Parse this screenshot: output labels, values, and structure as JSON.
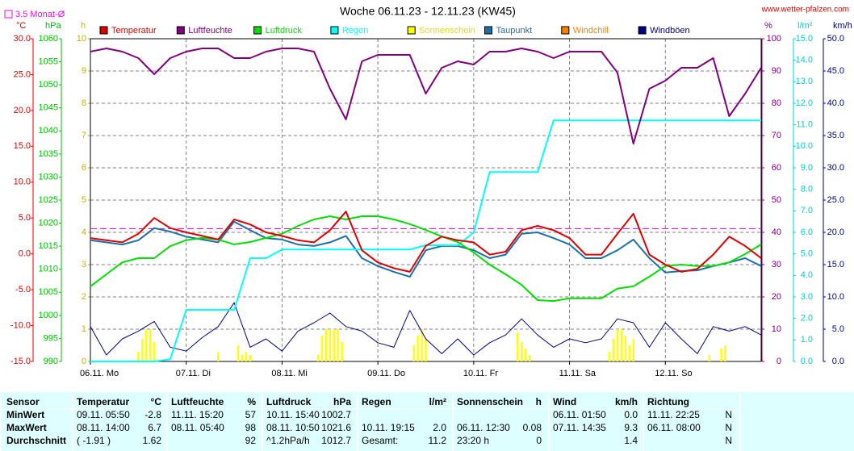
{
  "chart_data": {
    "type": "line",
    "title": "Woche 06.11.23 - 12.11.23 (KW45)",
    "source": "www.wetter-pfalzen.com",
    "reference_line": {
      "value": 3.5,
      "label": "3.5 Monat-Ø",
      "color": "#ff00ff",
      "axis": 0
    },
    "xlim": [
      0,
      168
    ],
    "xticks": [
      {
        "value": 0,
        "label": "06.11. Mo"
      },
      {
        "value": 24,
        "label": "07.11. Di"
      },
      {
        "value": 48,
        "label": "08.11. Mi"
      },
      {
        "value": 72,
        "label": "09.11. Do"
      },
      {
        "value": 96,
        "label": "10.11. Fr"
      },
      {
        "value": 120,
        "label": "11.11. Sa"
      },
      {
        "value": 144,
        "label": "12.11. So"
      }
    ],
    "grid": true,
    "axes": [
      {
        "unit": "°C",
        "side": "left",
        "color": "#e00000",
        "ylim": [
          -15,
          30
        ],
        "yticks": [
          {
            "value": 30,
            "label": "30.0"
          },
          {
            "value": 25,
            "label": "25.0"
          },
          {
            "value": 20,
            "label": "20.0"
          },
          {
            "value": 15,
            "label": "15.0"
          },
          {
            "value": 10,
            "label": "10.0"
          },
          {
            "value": 5,
            "label": "5.0"
          },
          {
            "value": 0,
            "label": "0.0"
          },
          {
            "value": -5,
            "label": "-5.0"
          },
          {
            "value": -10,
            "label": "-10.0"
          },
          {
            "value": -15,
            "label": "-15.0"
          }
        ]
      },
      {
        "unit": "hPa",
        "side": "left",
        "color": "#00c000",
        "ylim": [
          990,
          1060
        ],
        "yticks": [
          1060,
          1055,
          1050,
          1045,
          1040,
          1035,
          1030,
          1025,
          1020,
          1015,
          1010,
          1005,
          1000,
          995,
          990
        ]
      },
      {
        "unit": "h",
        "side": "left",
        "color": "#b8b800",
        "ylim": [
          0,
          10
        ],
        "yticks": [
          10,
          9,
          8,
          7,
          6,
          5,
          4,
          3,
          2,
          1,
          0
        ]
      },
      {
        "unit": "%",
        "side": "right",
        "color": "#800080",
        "ylim": [
          0,
          100
        ],
        "yticks": [
          100,
          90,
          80,
          70,
          60,
          50,
          40,
          30,
          20,
          10,
          0
        ]
      },
      {
        "unit": "l/m²",
        "side": "right",
        "color": "#00d0d0",
        "ylim": [
          0,
          15
        ],
        "yticks": [
          {
            "value": 15,
            "label": "15.0"
          },
          {
            "value": 14,
            "label": "14.0"
          },
          {
            "value": 13,
            "label": "13.0"
          },
          {
            "value": 12,
            "label": "12.0"
          },
          {
            "value": 11,
            "label": "11.0"
          },
          {
            "value": 10,
            "label": "10.0"
          },
          {
            "value": 9,
            "label": "9.0"
          },
          {
            "value": 8,
            "label": "8.0"
          },
          {
            "value": 7,
            "label": "7.0"
          },
          {
            "value": 6,
            "label": "6.0"
          },
          {
            "value": 5,
            "label": "5.0"
          },
          {
            "value": 4,
            "label": "4.0"
          },
          {
            "value": 3,
            "label": "3.0"
          },
          {
            "value": 2,
            "label": "2.0"
          },
          {
            "value": 1,
            "label": "1.0"
          },
          {
            "value": 0,
            "label": "0.0"
          }
        ]
      },
      {
        "unit": "km/h",
        "side": "right",
        "color": "#000080",
        "ylim": [
          0,
          50
        ],
        "yticks": [
          {
            "value": 50,
            "label": "50.0"
          },
          {
            "value": 45,
            "label": "45.0"
          },
          {
            "value": 40,
            "label": "40.0"
          },
          {
            "value": 35,
            "label": "35.0"
          },
          {
            "value": 30,
            "label": "30.0"
          },
          {
            "value": 25,
            "label": "25.0"
          },
          {
            "value": 20,
            "label": "20.0"
          },
          {
            "value": 15,
            "label": "15.0"
          },
          {
            "value": 10,
            "label": "10.0"
          },
          {
            "value": 5,
            "label": "5.0"
          },
          {
            "value": 0,
            "label": "0.0"
          }
        ]
      }
    ],
    "x": [
      0,
      4,
      8,
      12,
      16,
      20,
      24,
      28,
      32,
      36,
      40,
      44,
      48,
      52,
      56,
      60,
      64,
      68,
      72,
      76,
      80,
      84,
      88,
      92,
      96,
      100,
      104,
      108,
      112,
      116,
      120,
      124,
      128,
      132,
      136,
      140,
      144,
      148,
      152,
      156,
      160,
      164,
      168
    ],
    "series": [
      {
        "name": "Temperatur",
        "color": "#e00000",
        "kind": "line",
        "axis": 0,
        "values": [
          2.2,
          1.9,
          1.6,
          2.8,
          5.0,
          3.6,
          3.0,
          2.5,
          2.0,
          4.8,
          4.1,
          3.0,
          2.5,
          1.9,
          1.6,
          3.3,
          5.9,
          0.5,
          -1.2,
          -2.0,
          -2.5,
          1.1,
          2.4,
          1.9,
          1.6,
          -0.1,
          0.3,
          3.3,
          3.9,
          3.3,
          2.2,
          -0.1,
          -0.1,
          2.8,
          5.6,
          -0.1,
          -1.5,
          -2.5,
          -2.1,
          -0.1,
          2.4,
          1.1,
          -0.6
        ]
      },
      {
        "name": "Luftfeuchte",
        "color": "#800080",
        "kind": "line",
        "axis": 3,
        "values": [
          96,
          97,
          96,
          94,
          89,
          94,
          96,
          97,
          97,
          94,
          94,
          96,
          97,
          97,
          96,
          84.5,
          75,
          93,
          95,
          95,
          95,
          83,
          91,
          93,
          92,
          96,
          96,
          97,
          96,
          94,
          96,
          96,
          96,
          89.5,
          67.5,
          84.5,
          87,
          91,
          91,
          94,
          76,
          83,
          91
        ]
      },
      {
        "name": "Luftdruck",
        "color": "#00e000",
        "kind": "line",
        "axis": 1,
        "values": [
          1006.3,
          1008.9,
          1011.5,
          1012.4,
          1012.4,
          1015,
          1016.3,
          1016.8,
          1016.4,
          1015.4,
          1015.9,
          1016.8,
          1017.7,
          1019.4,
          1020.8,
          1021.5,
          1020.8,
          1021.5,
          1021.5,
          1020.8,
          1019.8,
          1018.5,
          1017.1,
          1015.9,
          1013.6,
          1011,
          1008.9,
          1006.6,
          1003.3,
          1003.1,
          1003.7,
          1003.7,
          1003.7,
          1005.8,
          1006.3,
          1008.4,
          1010.7,
          1011,
          1010.7,
          1010.7,
          1011.5,
          1013.3,
          1015.4
        ]
      },
      {
        "name": "Regen",
        "color": "#00ffff",
        "kind": "line",
        "axis": 4,
        "values": [
          0,
          0,
          0,
          0,
          0,
          0.1,
          2.4,
          2.4,
          2.4,
          2.4,
          4.8,
          4.8,
          5.2,
          5.2,
          5.2,
          5.2,
          5.2,
          5.2,
          5.2,
          5.2,
          5.2,
          5.4,
          5.4,
          5.4,
          6.0,
          8.8,
          8.8,
          8.8,
          8.8,
          11.2,
          11.2,
          11.2,
          11.2,
          11.2,
          11.2,
          11.2,
          11.2,
          11.2,
          11.2,
          11.2,
          11.2,
          11.2,
          11.2
        ]
      },
      {
        "name": "Sonnenschein",
        "color": "#ffff00",
        "kind": "bar",
        "axis": 2,
        "x": [
          12,
          13,
          14,
          15,
          16,
          32,
          37,
          38,
          39,
          40,
          57,
          58,
          59,
          60,
          61,
          62,
          63,
          81,
          82,
          83,
          84,
          107,
          108,
          109,
          110,
          130,
          131,
          132,
          133,
          134,
          135,
          136,
          155,
          158,
          159
        ],
        "values": [
          0.3,
          0.7,
          1.0,
          1.0,
          0.6,
          0.3,
          0.5,
          0.2,
          0.3,
          0.2,
          0.2,
          0.8,
          1.0,
          1.0,
          1.0,
          1.0,
          0.6,
          0.5,
          0.8,
          1.0,
          0.7,
          0.9,
          0.6,
          0.4,
          0.2,
          0.3,
          0.7,
          1.0,
          1.0,
          0.8,
          0.5,
          0.7,
          0.2,
          0.4,
          0.5
        ]
      },
      {
        "name": "Taupunkt",
        "color": "#1c70a8",
        "kind": "line",
        "axis": 0,
        "values": [
          1.9,
          1.6,
          1.3,
          1.9,
          3.6,
          3.1,
          2.4,
          2.0,
          1.6,
          4.5,
          3.3,
          2.2,
          2.0,
          1.3,
          1.1,
          1.6,
          2.5,
          -0.6,
          -1.7,
          -2.5,
          -3.2,
          0.5,
          1.1,
          1.1,
          0.5,
          -0.6,
          -0.1,
          2.8,
          3.0,
          2.2,
          1.3,
          -0.6,
          -0.6,
          0.5,
          2.0,
          -0.6,
          -2.6,
          -2.4,
          -2.3,
          -1.7,
          -1.2,
          -0.6,
          -1.7
        ]
      },
      {
        "name": "Windchill",
        "color": "#ff8000",
        "kind": "line",
        "axis": 0,
        "values": [
          null,
          null,
          null,
          null,
          null,
          null,
          null,
          null,
          null,
          null,
          null,
          null,
          null,
          null,
          null,
          null,
          null,
          null,
          null,
          null,
          null,
          null,
          null,
          null,
          null,
          null,
          null,
          null,
          null,
          null,
          null,
          null,
          null,
          null,
          null,
          null,
          null,
          null,
          null,
          null,
          null,
          null,
          null
        ]
      },
      {
        "name": "Windböen",
        "color": "#000080",
        "kind": "line",
        "axis": 5,
        "values": [
          5.4,
          1,
          3.5,
          4.7,
          6.2,
          2.2,
          1.6,
          3.7,
          5.4,
          9.1,
          2.2,
          3.5,
          1.6,
          4.7,
          6,
          7.5,
          5.4,
          4.7,
          2.9,
          2.2,
          7.9,
          3.5,
          1.2,
          3.5,
          1,
          2.9,
          4.1,
          6.6,
          4.1,
          2.2,
          3.5,
          2.9,
          3.5,
          6.6,
          6,
          2.2,
          6,
          3.5,
          1.2,
          5.4,
          4.7,
          5.4,
          4.1
        ]
      }
    ]
  },
  "table": {
    "sensor": "Sensor",
    "columns": [
      {
        "title": "Temperatur",
        "unit": "°C"
      },
      {
        "title": "Luftfeuchte",
        "unit": "%"
      },
      {
        "title": "Luftdruck",
        "unit": "hPa"
      },
      {
        "title": "Regen",
        "unit": "l/m²"
      },
      {
        "title": "Sonnenschein",
        "unit": "h"
      },
      {
        "title": "Wind",
        "unit": "km/h"
      },
      {
        "title": "Richtung"
      }
    ],
    "rows": [
      {
        "label": "MinWert",
        "cells": [
          [
            "09.11. 05:50",
            "-2.8"
          ],
          [
            "11.11. 15:20",
            "57"
          ],
          [
            "10.11. 15:40",
            "1002.7"
          ],
          [
            null,
            null
          ],
          [
            null,
            null
          ],
          [
            "06.11. 01:50",
            "0.0"
          ],
          [
            "11.11. 22:25",
            "N"
          ]
        ]
      },
      {
        "label": "MaxWert",
        "cells": [
          [
            "08.11. 14:00",
            "6.7"
          ],
          [
            "08.11. 05:40",
            "98"
          ],
          [
            "08.11. 10:50",
            "1021.6"
          ],
          [
            "10.11. 19:15",
            "2.0"
          ],
          [
            "06.11. 12:30",
            "0.08"
          ],
          [
            "07.11. 14:35",
            "9.3"
          ],
          [
            "06.11. 08:00",
            "N"
          ]
        ]
      },
      {
        "label": "Durchschnitt",
        "cells": [
          [
            "( -1.91 )",
            "1.62"
          ],
          [
            null,
            "92"
          ],
          [
            "^1.2hPa/h",
            "1012.7"
          ],
          [
            "Gesamt:",
            "11.2"
          ],
          [
            "23:20 h",
            "0"
          ],
          [
            null,
            "1.4"
          ],
          [
            null,
            "N"
          ]
        ]
      }
    ]
  }
}
